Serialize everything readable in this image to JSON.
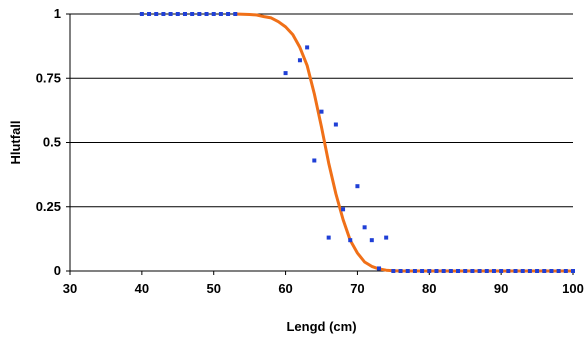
{
  "chart_data": {
    "type": "scatter",
    "title": "",
    "xlabel": "Lengd (cm)",
    "ylabel": "Hlutfall",
    "xlim": [
      30,
      100
    ],
    "ylim": [
      0,
      1
    ],
    "x_ticks": [
      30,
      40,
      50,
      60,
      70,
      80,
      90,
      100
    ],
    "y_ticks": [
      0,
      0.25,
      0.5,
      0.75,
      1
    ],
    "y_tick_labels": [
      "0",
      "0.25",
      "0.5",
      "0.75",
      "1"
    ],
    "grid": "horizontal",
    "legend": "none",
    "series": [
      {
        "kind": "points",
        "color": "#1f3fd6",
        "marker": "square",
        "points": [
          [
            40,
            1
          ],
          [
            41,
            1
          ],
          [
            42,
            1
          ],
          [
            43,
            1
          ],
          [
            44,
            1
          ],
          [
            45,
            1
          ],
          [
            46,
            1
          ],
          [
            47,
            1
          ],
          [
            48,
            1
          ],
          [
            49,
            1
          ],
          [
            50,
            1
          ],
          [
            51,
            1
          ],
          [
            52,
            1
          ],
          [
            53,
            1
          ],
          [
            60,
            0.77
          ],
          [
            62,
            0.82
          ],
          [
            63,
            0.87
          ],
          [
            64,
            0.43
          ],
          [
            65,
            0.62
          ],
          [
            66,
            0.13
          ],
          [
            67,
            0.57
          ],
          [
            68,
            0.24
          ],
          [
            69,
            0.12
          ],
          [
            70,
            0.33
          ],
          [
            71,
            0.17
          ],
          [
            72,
            0.12
          ],
          [
            73,
            0.01
          ],
          [
            74,
            0.13
          ],
          [
            75,
            0
          ],
          [
            76,
            0
          ],
          [
            77,
            0
          ],
          [
            78,
            0
          ],
          [
            79,
            0
          ],
          [
            80,
            0
          ],
          [
            81,
            0
          ],
          [
            82,
            0
          ],
          [
            83,
            0
          ],
          [
            84,
            0
          ],
          [
            85,
            0
          ],
          [
            86,
            0
          ],
          [
            87,
            0
          ],
          [
            88,
            0
          ],
          [
            89,
            0
          ],
          [
            90,
            0
          ],
          [
            91,
            0
          ],
          [
            92,
            0
          ],
          [
            93,
            0
          ],
          [
            94,
            0
          ],
          [
            95,
            0
          ],
          [
            96,
            0
          ],
          [
            97,
            0
          ],
          [
            98,
            0
          ],
          [
            99,
            0
          ],
          [
            100,
            0
          ]
        ]
      },
      {
        "kind": "line",
        "color": "#f07018",
        "points": [
          [
            53,
            1
          ],
          [
            54,
            0.999
          ],
          [
            55,
            0.998
          ],
          [
            56,
            0.996
          ],
          [
            57,
            0.99
          ],
          [
            58,
            0.985
          ],
          [
            59,
            0.97
          ],
          [
            60,
            0.95
          ],
          [
            61,
            0.92
          ],
          [
            62,
            0.87
          ],
          [
            63,
            0.8
          ],
          [
            64,
            0.69
          ],
          [
            65,
            0.56
          ],
          [
            66,
            0.42
          ],
          [
            67,
            0.3
          ],
          [
            68,
            0.2
          ],
          [
            69,
            0.12
          ],
          [
            70,
            0.07
          ],
          [
            71,
            0.035
          ],
          [
            72,
            0.018
          ],
          [
            73,
            0.008
          ],
          [
            74,
            0.003
          ],
          [
            75,
            0.001
          ],
          [
            76,
            0
          ],
          [
            80,
            0
          ],
          [
            90,
            0
          ],
          [
            100,
            0
          ]
        ]
      }
    ]
  }
}
